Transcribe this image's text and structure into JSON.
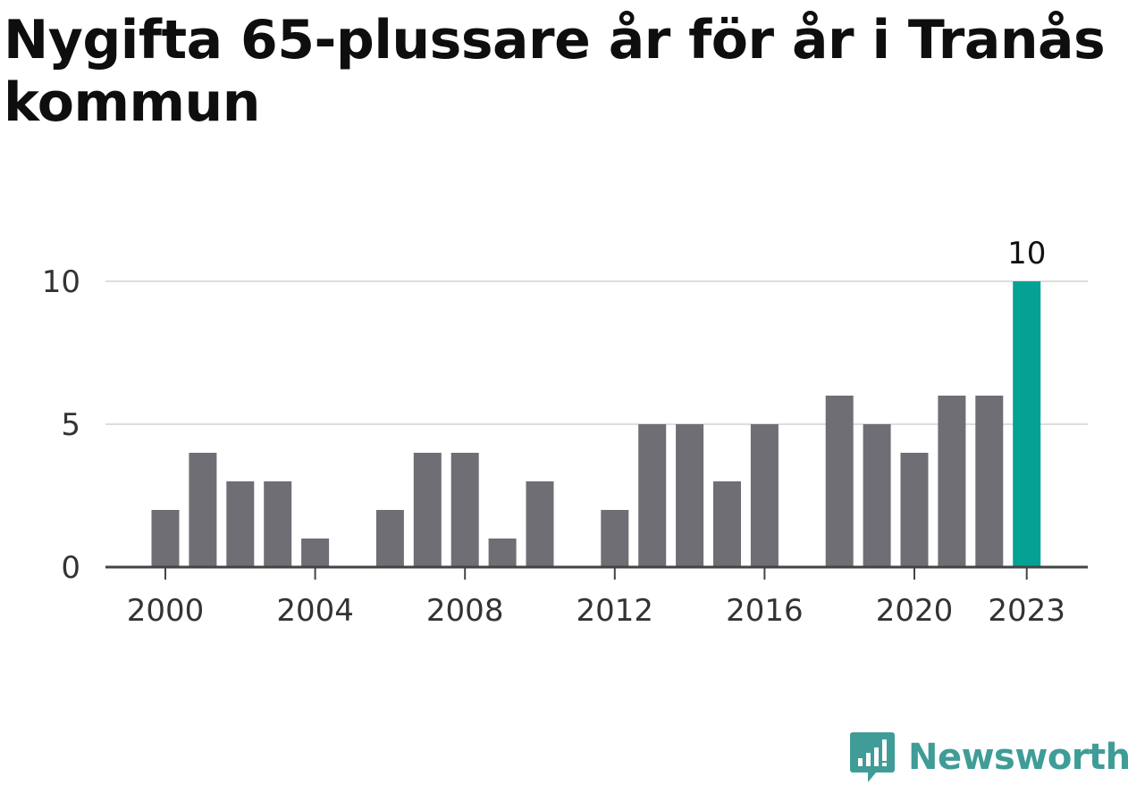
{
  "page": {
    "title": "Nygifta 65-plussare år för år i Tranås kommun"
  },
  "brand": {
    "name": "Newsworthy",
    "color": "#3f9c97"
  },
  "chart_data": {
    "type": "bar",
    "title": "Nygifta 65-plussare år för år i Tranås kommun",
    "xlabel": "",
    "ylabel": "",
    "categories": [
      2000,
      2001,
      2002,
      2003,
      2004,
      2005,
      2006,
      2007,
      2008,
      2009,
      2010,
      2011,
      2012,
      2013,
      2014,
      2015,
      2016,
      2017,
      2018,
      2019,
      2020,
      2021,
      2022,
      2023
    ],
    "values": [
      2,
      4,
      3,
      3,
      1,
      0,
      2,
      4,
      4,
      1,
      3,
      0,
      2,
      5,
      5,
      3,
      5,
      0,
      6,
      5,
      4,
      6,
      6,
      10
    ],
    "x_ticks": [
      "2000",
      "2004",
      "2008",
      "2012",
      "2016",
      "2020",
      "2023"
    ],
    "y_ticks": [
      "0",
      "5",
      "10"
    ],
    "ylim": [
      0,
      10
    ],
    "grid": true,
    "highlight": {
      "category": 2023,
      "label": "10",
      "color": "#04a295"
    },
    "bar_color": "#6f6e75",
    "grid_color": "#dddddd",
    "axis_color": "#444444"
  }
}
